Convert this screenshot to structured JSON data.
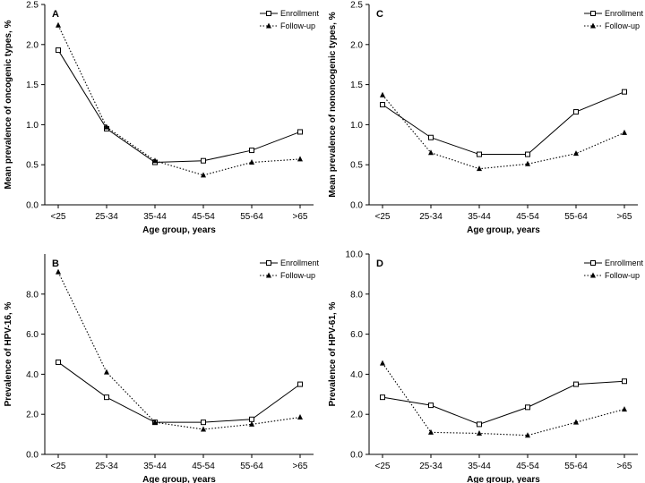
{
  "chart_data": [
    {
      "panel": "A",
      "type": "line",
      "categories": [
        "<25",
        "25-34",
        "35-44",
        "45-54",
        "55-64",
        ">65"
      ],
      "ylabel": "Mean prevalence of oncogenic types, %",
      "xlabel": "Age group, years",
      "ylim": [
        0,
        2.5
      ],
      "yticks": [
        "0.0",
        "0.5",
        "1.0",
        "1.5",
        "2.0",
        "2.5"
      ],
      "legend_position": "top-right",
      "series": [
        {
          "name": "Enrollment",
          "values": [
            1.93,
            0.95,
            0.53,
            0.55,
            0.68,
            0.91
          ]
        },
        {
          "name": "Follow-up",
          "values": [
            2.24,
            0.97,
            0.55,
            0.37,
            0.53,
            0.57
          ]
        }
      ]
    },
    {
      "panel": "C",
      "type": "line",
      "categories": [
        "<25",
        "25-34",
        "35-44",
        "45-54",
        "55-64",
        ">65"
      ],
      "ylabel": "Mean prevalence of nononcogenic types, %",
      "xlabel": "Age group, years",
      "ylim": [
        0,
        2.5
      ],
      "yticks": [
        "0.0",
        "0.5",
        "1.0",
        "1.5",
        "2.0",
        "2.5"
      ],
      "legend_position": "top-right",
      "series": [
        {
          "name": "Enrollment",
          "values": [
            1.25,
            0.84,
            0.63,
            0.63,
            1.16,
            1.41
          ]
        },
        {
          "name": "Follow-up",
          "values": [
            1.37,
            0.65,
            0.45,
            0.51,
            0.64,
            0.9
          ]
        }
      ]
    },
    {
      "panel": "B",
      "type": "line",
      "categories": [
        "<25",
        "25-34",
        "35-44",
        "45-54",
        "55-64",
        ">65"
      ],
      "ylabel": "Prevalence of HPV-16, %",
      "xlabel": "Age group, years",
      "ylim": [
        0,
        10
      ],
      "yticks": [
        "0.0",
        "2.0",
        "4.0",
        "6.0",
        "8.0"
      ],
      "legend_position": "top-right",
      "series": [
        {
          "name": "Enrollment",
          "values": [
            4.6,
            2.85,
            1.6,
            1.6,
            1.75,
            3.5
          ]
        },
        {
          "name": "Follow-up",
          "values": [
            9.1,
            4.1,
            1.6,
            1.25,
            1.5,
            1.85
          ]
        }
      ]
    },
    {
      "panel": "D",
      "type": "line",
      "categories": [
        "<25",
        "25-34",
        "35-44",
        "45-54",
        "55-64",
        ">65"
      ],
      "ylabel": "Prevalence of HPV-61, %",
      "xlabel": "Age group, years",
      "ylim": [
        0,
        10
      ],
      "yticks": [
        "0.0",
        "2.0",
        "4.0",
        "6.0",
        "8.0",
        "10.0"
      ],
      "legend_position": "top-right",
      "series": [
        {
          "name": "Enrollment",
          "values": [
            2.85,
            2.45,
            1.5,
            2.35,
            3.5,
            3.65
          ]
        },
        {
          "name": "Follow-up",
          "values": [
            4.55,
            1.1,
            1.05,
            0.95,
            1.6,
            2.25
          ]
        }
      ]
    }
  ]
}
